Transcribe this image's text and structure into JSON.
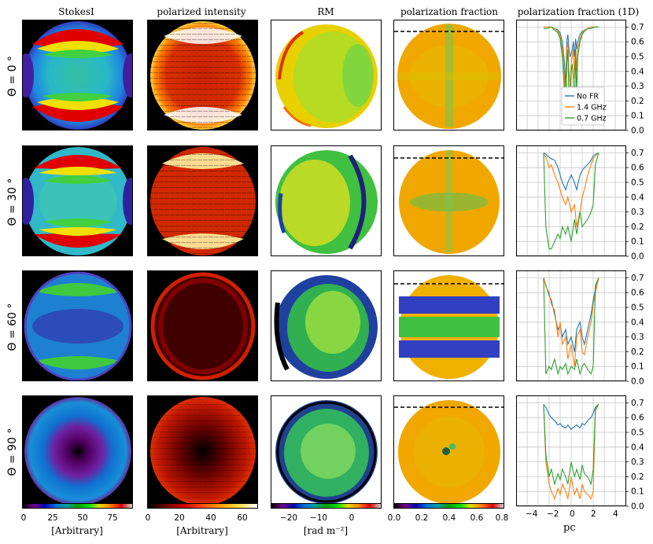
{
  "column_titles": [
    "StokesI",
    "polarized intensity",
    "RM",
    "polarization fraction",
    "polarization fraction (1D)"
  ],
  "row_labels": [
    "Θ = 0 °",
    "Θ = 30 °",
    "Θ = 60 °",
    "Θ = 90 °"
  ],
  "colorbars": [
    {
      "ticks": [
        "0",
        "25",
        "50",
        "75"
      ],
      "label": "[Arbitrary]",
      "range": [
        0,
        90
      ],
      "colormap": "nipy_spectral"
    },
    {
      "ticks": [
        "0",
        "20",
        "40",
        "60"
      ],
      "label": "[Arbitrary]",
      "range": [
        0,
        70
      ],
      "colormap": "hot"
    },
    {
      "ticks": [
        "−20",
        "−10",
        "0"
      ],
      "label": "[rad m⁻²]",
      "range": [
        -28,
        10
      ],
      "colormap": "nipy_spectral"
    },
    {
      "ticks": [
        "0.0",
        "0.2",
        "0.4",
        "0.6",
        "0.8"
      ],
      "label": "",
      "range": [
        0,
        0.8
      ],
      "colormap": "nipy_spectral"
    }
  ],
  "colors": {
    "no_fr": "#1f77b4",
    "ghz_1_4": "#ff7f0e",
    "ghz_0_7": "#2ca02c"
  },
  "chart_data": {
    "type": "line",
    "xlabel": "pc",
    "xlim": [
      -5,
      5
    ],
    "ylim": [
      0,
      0.75
    ],
    "x_ticks": [
      "−4",
      "−2",
      "0",
      "2",
      "4"
    ],
    "y_ticks": [
      "0.0",
      "0.1",
      "0.2",
      "0.3",
      "0.4",
      "0.5",
      "0.6",
      "0.7"
    ],
    "grid": true,
    "legend_loc": "lower right",
    "legend": [
      "No FR",
      "1.4 GHz",
      "0.7 GHz"
    ],
    "panels": [
      {
        "row": "Θ = 0 °",
        "x": [
          -2.5,
          -2.2,
          -1.8,
          -1.5,
          -1.2,
          -1.0,
          -0.8,
          -0.6,
          -0.5,
          -0.4,
          -0.3,
          -0.2,
          -0.1,
          0.0,
          0.1,
          0.2,
          0.3,
          0.4,
          0.5,
          0.6,
          0.8,
          1.0,
          1.2,
          1.5,
          1.8,
          2.2,
          2.5
        ],
        "series": [
          {
            "name": "No FR",
            "values": [
              0.7,
              0.7,
              0.7,
              0.69,
              0.68,
              0.66,
              0.6,
              0.45,
              0.3,
              0.6,
              0.65,
              0.55,
              0.5,
              0.52,
              0.55,
              0.6,
              0.5,
              0.62,
              0.55,
              0.6,
              0.65,
              0.67,
              0.68,
              0.69,
              0.7,
              0.7,
              0.7
            ]
          },
          {
            "name": "1.4 GHz",
            "values": [
              0.7,
              0.7,
              0.7,
              0.69,
              0.67,
              0.64,
              0.55,
              0.35,
              0.1,
              0.55,
              0.6,
              0.4,
              0.3,
              0.45,
              0.5,
              0.55,
              0.35,
              0.58,
              0.4,
              0.55,
              0.62,
              0.66,
              0.68,
              0.69,
              0.7,
              0.7,
              0.7
            ]
          },
          {
            "name": "0.7 GHz",
            "values": [
              0.69,
              0.69,
              0.7,
              0.68,
              0.66,
              0.62,
              0.5,
              0.25,
              0.05,
              0.45,
              0.55,
              0.2,
              0.05,
              0.4,
              0.45,
              0.35,
              0.1,
              0.55,
              0.25,
              0.5,
              0.6,
              0.65,
              0.67,
              0.69,
              0.69,
              0.7,
              0.7
            ]
          }
        ]
      },
      {
        "row": "Θ = 30 °",
        "x": [
          -2.5,
          -2.3,
          -2.0,
          -1.8,
          -1.5,
          -1.2,
          -1.0,
          -0.8,
          -0.5,
          -0.3,
          0.0,
          0.3,
          0.5,
          0.8,
          1.0,
          1.2,
          1.5,
          1.8,
          2.0,
          2.2,
          2.5
        ],
        "series": [
          {
            "name": "No FR",
            "values": [
              0.7,
              0.69,
              0.67,
              0.66,
              0.65,
              0.6,
              0.55,
              0.5,
              0.45,
              0.5,
              0.55,
              0.5,
              0.45,
              0.55,
              0.58,
              0.6,
              0.62,
              0.65,
              0.68,
              0.69,
              0.7
            ]
          },
          {
            "name": "1.4 GHz",
            "values": [
              0.69,
              0.67,
              0.6,
              0.62,
              0.55,
              0.5,
              0.45,
              0.4,
              0.35,
              0.4,
              0.3,
              0.35,
              0.2,
              0.3,
              0.4,
              0.45,
              0.55,
              0.62,
              0.66,
              0.68,
              0.7
            ]
          },
          {
            "name": "0.7 GHz",
            "values": [
              0.7,
              0.2,
              0.05,
              0.05,
              0.1,
              0.15,
              0.12,
              0.2,
              0.15,
              0.2,
              0.1,
              0.25,
              0.15,
              0.3,
              0.2,
              0.22,
              0.25,
              0.3,
              0.35,
              0.62,
              0.7
            ]
          }
        ]
      },
      {
        "row": "Θ = 60 °",
        "x": [
          -2.5,
          -2.3,
          -2.0,
          -1.8,
          -1.5,
          -1.2,
          -1.0,
          -0.8,
          -0.5,
          -0.3,
          0.0,
          0.3,
          0.5,
          0.8,
          1.0,
          1.2,
          1.5,
          1.8,
          2.0,
          2.2,
          2.5
        ],
        "series": [
          {
            "name": "No FR",
            "values": [
              0.7,
              0.65,
              0.58,
              0.55,
              0.45,
              0.35,
              0.38,
              0.3,
              0.35,
              0.25,
              0.3,
              0.2,
              0.35,
              0.4,
              0.3,
              0.25,
              0.35,
              0.45,
              0.55,
              0.62,
              0.7
            ]
          },
          {
            "name": "1.4 GHz",
            "values": [
              0.7,
              0.64,
              0.6,
              0.52,
              0.48,
              0.3,
              0.4,
              0.25,
              0.3,
              0.15,
              0.25,
              0.1,
              0.3,
              0.35,
              0.2,
              0.18,
              0.3,
              0.4,
              0.52,
              0.6,
              0.7
            ]
          },
          {
            "name": "0.7 GHz",
            "values": [
              0.7,
              0.05,
              0.1,
              0.08,
              0.15,
              0.05,
              0.1,
              0.08,
              0.12,
              0.05,
              0.1,
              0.08,
              0.15,
              0.05,
              0.1,
              0.12,
              0.08,
              0.05,
              0.1,
              0.65,
              0.7
            ]
          }
        ]
      },
      {
        "row": "Θ = 90 °",
        "x": [
          -2.5,
          -2.3,
          -2.0,
          -1.8,
          -1.5,
          -1.2,
          -1.0,
          -0.8,
          -0.5,
          -0.3,
          0.0,
          0.3,
          0.5,
          0.8,
          1.0,
          1.2,
          1.5,
          1.8,
          2.0,
          2.2,
          2.5
        ],
        "series": [
          {
            "name": "No FR",
            "values": [
              0.69,
              0.67,
              0.62,
              0.6,
              0.58,
              0.55,
              0.56,
              0.54,
              0.53,
              0.55,
              0.52,
              0.54,
              0.55,
              0.53,
              0.56,
              0.55,
              0.58,
              0.6,
              0.63,
              0.67,
              0.69
            ]
          },
          {
            "name": "1.4 GHz",
            "values": [
              0.69,
              0.3,
              0.15,
              0.1,
              0.05,
              0.12,
              0.08,
              0.15,
              0.1,
              0.05,
              0.2,
              0.08,
              0.12,
              0.05,
              0.15,
              0.1,
              0.08,
              0.05,
              0.1,
              0.66,
              0.69
            ]
          },
          {
            "name": "0.7 GHz",
            "values": [
              0.69,
              0.35,
              0.2,
              0.25,
              0.15,
              0.22,
              0.18,
              0.25,
              0.2,
              0.15,
              0.3,
              0.2,
              0.25,
              0.18,
              0.28,
              0.22,
              0.2,
              0.15,
              0.25,
              0.65,
              0.69
            ]
          }
        ]
      }
    ]
  }
}
